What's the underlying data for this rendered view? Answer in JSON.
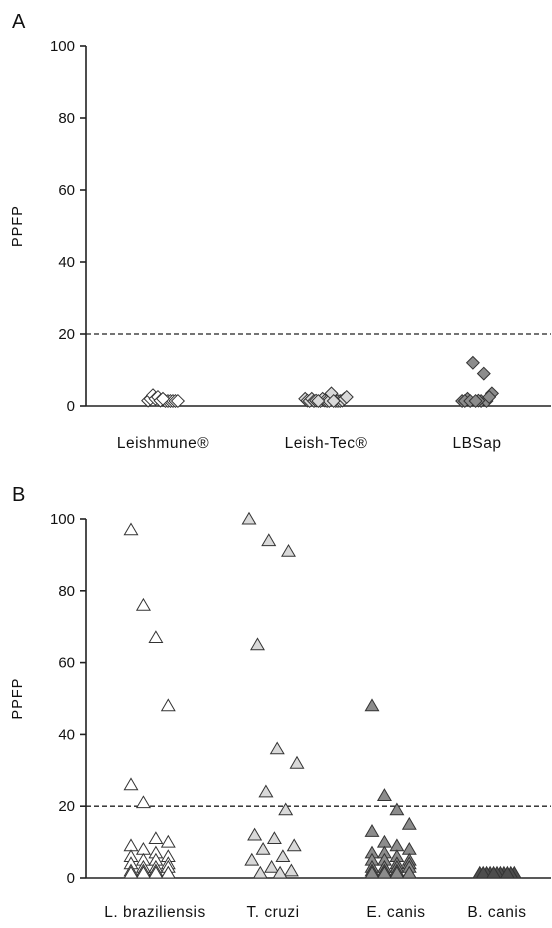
{
  "chart_data": [
    {
      "panel_label": "A",
      "type": "scatter",
      "marker": "diamond",
      "ylabel": "PPFP",
      "ylim": [
        0,
        100
      ],
      "yticks": [
        0,
        20,
        40,
        60,
        80,
        100
      ],
      "threshold": 20,
      "categories": [
        "Leishmune®",
        "Leish-Tec®",
        "LBSap"
      ],
      "series": [
        {
          "category": "Leishmune®",
          "color": "#ffffff",
          "values": [
            1.5,
            0.5,
            2.0,
            1.0,
            3.0,
            0.5,
            2.0,
            1.0,
            2.5,
            0.5,
            1.5,
            1.0,
            2.0
          ]
        },
        {
          "category": "Leish-Tec®",
          "color": "#d9d9d9",
          "values": [
            2.0,
            1.0,
            0.5,
            1.5,
            2.0,
            0.5,
            1.0,
            1.5,
            0.5,
            2.0,
            1.0,
            1.5,
            0.5,
            1.0,
            2.0,
            1.5,
            3.5,
            2.5,
            1.0,
            0.5
          ]
        },
        {
          "category": "LBSap",
          "color": "#8c8c8c",
          "values": [
            0.5,
            1.0,
            2.0,
            0.5,
            12.0,
            3.5,
            1.5,
            0.5,
            9.0,
            1.0,
            2.5,
            0.5
          ]
        }
      ]
    },
    {
      "panel_label": "B",
      "type": "scatter",
      "marker": "triangle",
      "ylabel": "PPFP",
      "ylim": [
        0,
        100
      ],
      "yticks": [
        0,
        20,
        40,
        60,
        80,
        100
      ],
      "threshold": 20,
      "categories": [
        "L. braziliensis",
        "T. cruzi",
        "E. canis",
        "B. canis"
      ],
      "series": [
        {
          "category": "L. braziliensis",
          "color": "#ffffff",
          "values": [
            97,
            76,
            67,
            48,
            26,
            21,
            11,
            10,
            9,
            8,
            7,
            6,
            6,
            5,
            5,
            4,
            4,
            3,
            3,
            3,
            2,
            2,
            2,
            1,
            1,
            1,
            0.5,
            0.5
          ]
        },
        {
          "category": "T. cruzi",
          "color": "#d9d9d9",
          "values": [
            100,
            94,
            91,
            65,
            36,
            32,
            24,
            19,
            12,
            11,
            9,
            8,
            6,
            5,
            3,
            2,
            1,
            0.5
          ]
        },
        {
          "category": "E. canis",
          "color": "#8c8c8c",
          "values": [
            48,
            23,
            19,
            15,
            13,
            10,
            9,
            8,
            7,
            7,
            6,
            5,
            5,
            5,
            4,
            4,
            3,
            3,
            3,
            3,
            2,
            2,
            2,
            1,
            1,
            1,
            1,
            0.5
          ]
        },
        {
          "category": "B. canis",
          "color": "#4d4d4d",
          "values": [
            1,
            1,
            1,
            1,
            1,
            1,
            1,
            1,
            1,
            1,
            1
          ]
        }
      ]
    }
  ]
}
